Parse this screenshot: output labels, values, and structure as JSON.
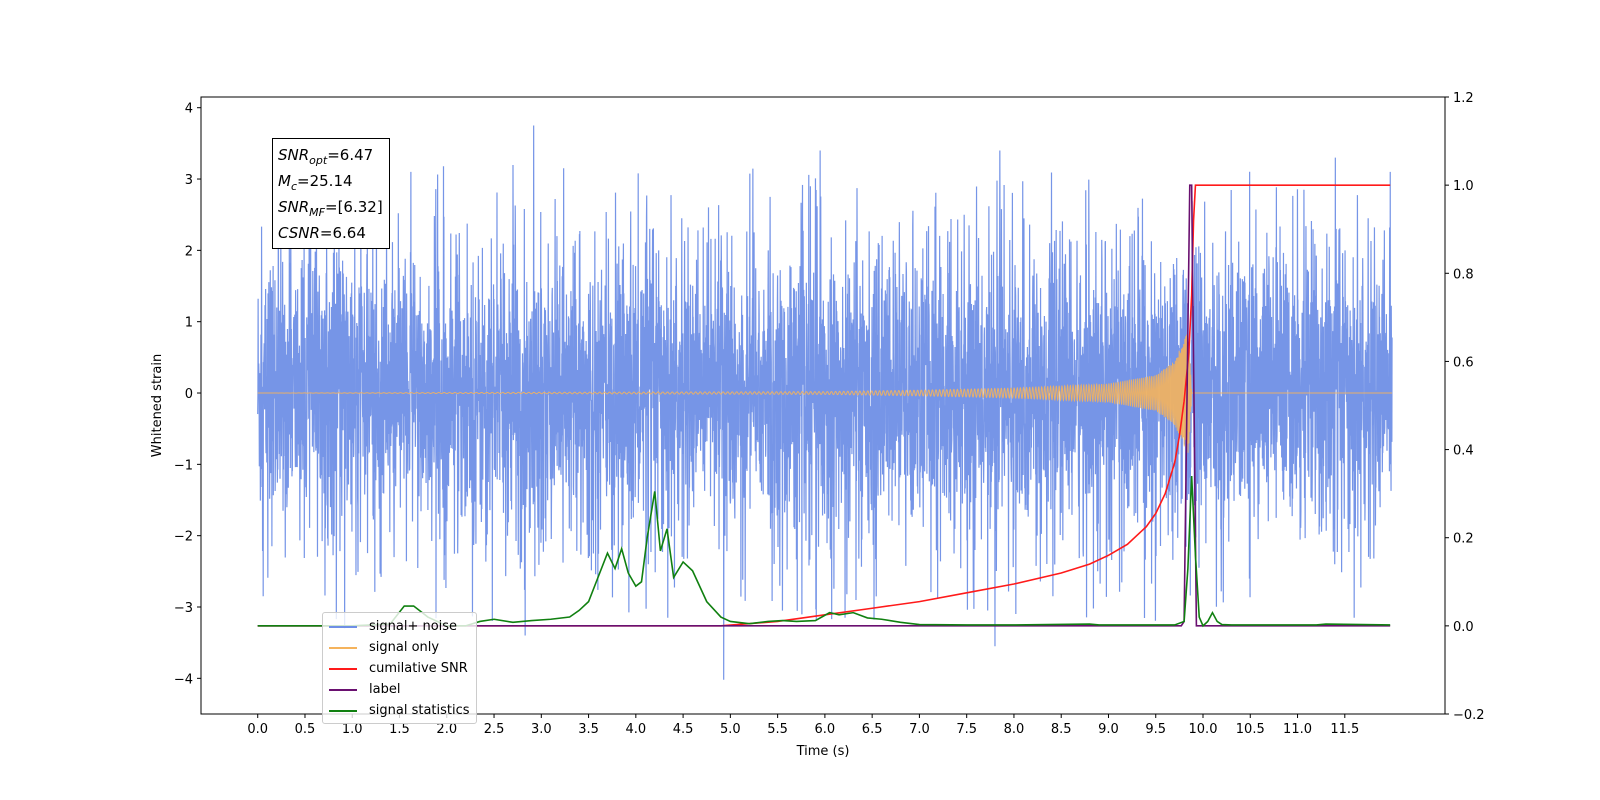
{
  "chart_data": {
    "type": "line",
    "xlabel": "Time (s)",
    "ylabel": "Whitened strain",
    "xlim": [
      -0.6,
      12.56
    ],
    "xticks": [
      0.0,
      0.5,
      1.0,
      1.5,
      2.0,
      2.5,
      3.0,
      3.5,
      4.0,
      4.5,
      5.0,
      5.5,
      6.0,
      6.5,
      7.0,
      7.5,
      8.0,
      8.5,
      9.0,
      9.5,
      10.0,
      10.5,
      11.0,
      11.5
    ],
    "ylim_left": [
      -4.5,
      4.15
    ],
    "yticks_left": [
      -4,
      -3,
      -2,
      -1,
      0,
      1,
      2,
      3,
      4
    ],
    "ylim_right": [
      -0.2,
      1.2
    ],
    "yticks_right": [
      -0.2,
      0.0,
      0.2,
      0.4,
      0.6,
      0.8,
      1.0,
      1.2
    ],
    "annotations": {
      "snr_opt": "=6.47",
      "mc": "=25.14",
      "snr_mf": "=[6.32]",
      "csnr": "=6.64"
    },
    "legend_position": "lower-left",
    "series": [
      {
        "name": "signal+ noise",
        "color": "#6f8fe6",
        "axis": "left",
        "description_values": {
          "x_range": [
            0,
            12.0
          ],
          "amplitude_band": [
            -2.2,
            2.2
          ],
          "max_peak": 3.75,
          "min_peak": -4.02
        },
        "peaks": [
          {
            "x": 2.92,
            "y": 3.75
          },
          {
            "x": 4.93,
            "y": -4.02
          },
          {
            "x": 7.8,
            "y": -3.55
          },
          {
            "x": 5.95,
            "y": 3.4
          },
          {
            "x": 7.85,
            "y": 3.4
          },
          {
            "x": 11.4,
            "y": 3.3
          },
          {
            "x": 11.98,
            "y": 3.1
          },
          {
            "x": 1.62,
            "y": 3.1
          },
          {
            "x": 2.83,
            "y": -3.4
          },
          {
            "x": 0.92,
            "y": -3.3
          },
          {
            "x": 5.55,
            "y": -3.05
          },
          {
            "x": 7.57,
            "y": -2.8
          }
        ]
      },
      {
        "name": "signal only",
        "color": "#f5b35c",
        "axis": "left",
        "envelope": [
          [
            6.0,
            0.02
          ],
          [
            7.0,
            0.04
          ],
          [
            8.0,
            0.07
          ],
          [
            9.0,
            0.13
          ],
          [
            9.5,
            0.25
          ],
          [
            9.7,
            0.45
          ],
          [
            9.8,
            0.75
          ],
          [
            9.85,
            0.9
          ],
          [
            9.88,
            0.0
          ]
        ],
        "merger_time": 9.88
      },
      {
        "name": "cumilative SNR",
        "color": "#ff1a1a",
        "axis": "right",
        "x": [
          0,
          4.9,
          5.5,
          6.0,
          6.5,
          7.0,
          7.5,
          8.0,
          8.5,
          8.8,
          9.0,
          9.2,
          9.4,
          9.5,
          9.6,
          9.7,
          9.75,
          9.8,
          9.85,
          9.88,
          9.9,
          9.92,
          11.98
        ],
        "values": [
          0.0,
          0.0,
          0.01,
          0.025,
          0.04,
          0.055,
          0.075,
          0.095,
          0.12,
          0.14,
          0.16,
          0.185,
          0.225,
          0.255,
          0.3,
          0.37,
          0.43,
          0.51,
          0.62,
          0.75,
          0.92,
          1.0,
          1.0
        ]
      },
      {
        "name": "label",
        "color": "#6a1070",
        "axis": "right",
        "x": [
          0,
          9.77,
          9.8,
          9.86,
          9.88,
          9.93,
          9.94,
          11.98
        ],
        "values": [
          0.0,
          0.0,
          0.01,
          1.0,
          1.0,
          0.0,
          0.0,
          0.0
        ]
      },
      {
        "name": "signal statistics",
        "color": "#108010",
        "axis": "right",
        "x": [
          0,
          1.0,
          1.4,
          1.55,
          1.65,
          1.8,
          2.0,
          2.2,
          2.35,
          2.5,
          2.7,
          2.9,
          3.1,
          3.3,
          3.4,
          3.5,
          3.6,
          3.7,
          3.78,
          3.85,
          3.92,
          4.0,
          4.06,
          4.12,
          4.2,
          4.26,
          4.33,
          4.4,
          4.5,
          4.6,
          4.75,
          4.9,
          5.0,
          5.2,
          5.4,
          5.55,
          5.7,
          5.9,
          6.05,
          6.15,
          6.3,
          6.45,
          6.6,
          6.8,
          7.0,
          7.5,
          8.0,
          8.8,
          8.9,
          9.0,
          9.7,
          9.8,
          9.84,
          9.88,
          9.92,
          9.96,
          10.0,
          10.05,
          10.1,
          10.15,
          10.2,
          10.3,
          10.5,
          11.2,
          11.3,
          11.98
        ],
        "values": [
          0.0,
          0.0,
          0.004,
          0.045,
          0.045,
          0.02,
          0.0,
          0.0,
          0.01,
          0.015,
          0.008,
          0.012,
          0.015,
          0.02,
          0.035,
          0.055,
          0.11,
          0.165,
          0.13,
          0.175,
          0.12,
          0.09,
          0.1,
          0.2,
          0.305,
          0.17,
          0.22,
          0.11,
          0.145,
          0.125,
          0.055,
          0.02,
          0.01,
          0.005,
          0.01,
          0.012,
          0.01,
          0.012,
          0.03,
          0.025,
          0.03,
          0.018,
          0.015,
          0.008,
          0.003,
          0.002,
          0.002,
          0.004,
          0.002,
          0.002,
          0.002,
          0.01,
          0.13,
          0.34,
          0.16,
          0.02,
          0.0,
          0.01,
          0.03,
          0.01,
          0.003,
          0.002,
          0.002,
          0.002,
          0.004,
          0.002
        ]
      }
    ]
  }
}
